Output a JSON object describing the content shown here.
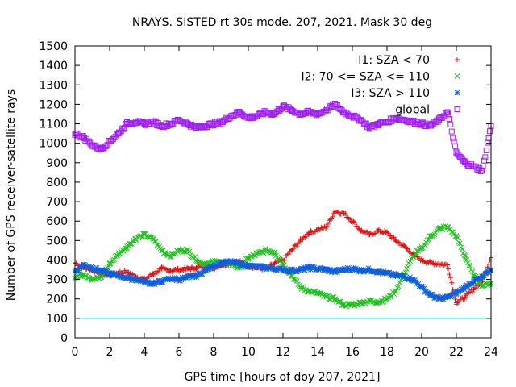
{
  "chart_data": {
    "type": "scatter",
    "title": "NRAYS. SISTED rt 30s mode. 207, 2021. Mask 30 deg",
    "xlabel": "GPS time [hours of doy 207, 2021]",
    "ylabel": "Number of GPS receiver-satellite rays",
    "xlim": [
      0,
      24
    ],
    "ylim": [
      0,
      1500
    ],
    "xticks": [
      0,
      2,
      4,
      6,
      8,
      10,
      12,
      14,
      16,
      18,
      20,
      22,
      24
    ],
    "yticks": [
      0,
      100,
      200,
      300,
      400,
      500,
      600,
      700,
      800,
      900,
      1000,
      1100,
      1200,
      1300,
      1400,
      1500
    ],
    "grid": false,
    "legend_position": "top-right",
    "reference_line": {
      "y": 100,
      "color": "#00c0c0"
    },
    "series": [
      {
        "name": "I1: SZA < 70",
        "marker": "+",
        "color": "#e01010",
        "x": [
          0,
          0.5,
          1,
          1.5,
          2,
          2.5,
          3,
          3.5,
          4,
          4.5,
          5,
          5.5,
          6,
          6.5,
          7,
          7.5,
          8,
          8.5,
          9,
          9.5,
          10,
          10.5,
          11,
          11.5,
          12,
          12.5,
          13,
          13.5,
          14,
          14.5,
          15,
          15.5,
          16,
          16.5,
          17,
          17.5,
          18,
          18.5,
          19,
          19.5,
          20,
          20.5,
          21,
          21.5,
          22,
          22.5,
          23,
          23.5,
          24
        ],
        "y": [
          385,
          360,
          350,
          330,
          320,
          335,
          340,
          315,
          300,
          330,
          355,
          345,
          350,
          355,
          360,
          370,
          360,
          375,
          385,
          390,
          370,
          360,
          355,
          380,
          400,
          450,
          500,
          540,
          555,
          570,
          650,
          640,
          600,
          550,
          530,
          550,
          540,
          500,
          470,
          430,
          400,
          385,
          380,
          375,
          180,
          210,
          250,
          290,
          420
        ]
      },
      {
        "name": "I2: 70 <= SZA <= 110",
        "marker": "x",
        "color": "#20c020",
        "x": [
          0,
          0.5,
          1,
          1.5,
          2,
          2.5,
          3,
          3.5,
          4,
          4.5,
          5,
          5.5,
          6,
          6.5,
          7,
          7.5,
          8,
          8.5,
          9,
          9.5,
          10,
          10.5,
          11,
          11.5,
          12,
          12.5,
          13,
          13.5,
          14,
          14.5,
          15,
          15.5,
          16,
          16.5,
          17,
          17.5,
          18,
          18.5,
          19,
          19.5,
          20,
          20.5,
          21,
          21.5,
          22,
          22.5,
          23,
          23.5,
          24
        ],
        "y": [
          310,
          330,
          300,
          310,
          380,
          430,
          470,
          510,
          530,
          510,
          450,
          420,
          450,
          450,
          400,
          380,
          390,
          390,
          380,
          360,
          410,
          430,
          450,
          440,
          380,
          320,
          260,
          240,
          230,
          210,
          200,
          170,
          170,
          180,
          190,
          185,
          200,
          240,
          330,
          420,
          460,
          520,
          560,
          570,
          520,
          420,
          320,
          270,
          280
        ]
      },
      {
        "name": "I3: SZA > 110",
        "marker": "*",
        "color": "#1060d8",
        "x": [
          0,
          0.5,
          1,
          1.5,
          2,
          2.5,
          3,
          3.5,
          4,
          4.5,
          5,
          5.5,
          6,
          6.5,
          7,
          7.5,
          8,
          8.5,
          9,
          9.5,
          10,
          10.5,
          11,
          11.5,
          12,
          12.5,
          13,
          13.5,
          14,
          14.5,
          15,
          15.5,
          16,
          16.5,
          17,
          17.5,
          18,
          18.5,
          19,
          19.5,
          20,
          20.5,
          21,
          21.5,
          22,
          22.5,
          23,
          23.5,
          24
        ],
        "y": [
          340,
          375,
          360,
          345,
          330,
          320,
          310,
          300,
          290,
          280,
          290,
          305,
          300,
          310,
          320,
          345,
          370,
          385,
          390,
          380,
          370,
          365,
          360,
          355,
          350,
          345,
          350,
          360,
          355,
          350,
          340,
          350,
          355,
          345,
          350,
          340,
          330,
          320,
          315,
          300,
          260,
          220,
          200,
          210,
          230,
          260,
          290,
          310,
          350
        ]
      },
      {
        "name": "global",
        "marker": "square",
        "color": "#a020f0",
        "x": [
          0,
          0.5,
          1,
          1.5,
          2,
          2.5,
          3,
          3.5,
          4,
          4.5,
          5,
          5.5,
          6,
          6.5,
          7,
          7.5,
          8,
          8.5,
          9,
          9.5,
          10,
          10.5,
          11,
          11.5,
          12,
          12.5,
          13,
          13.5,
          14,
          14.5,
          15,
          15.5,
          16,
          16.5,
          17,
          17.5,
          18,
          18.5,
          19,
          19.5,
          20,
          20.5,
          21,
          21.5,
          22,
          22.5,
          23,
          23.5,
          24
        ],
        "y": [
          1050,
          1030,
          990,
          970,
          1010,
          1050,
          1100,
          1110,
          1100,
          1110,
          1090,
          1100,
          1120,
          1100,
          1080,
          1090,
          1100,
          1110,
          1140,
          1160,
          1130,
          1140,
          1160,
          1150,
          1190,
          1170,
          1150,
          1160,
          1150,
          1170,
          1200,
          1160,
          1140,
          1120,
          1080,
          1100,
          1110,
          1130,
          1120,
          1110,
          1100,
          1090,
          1120,
          1160,
          950,
          900,
          880,
          860,
          1090
        ]
      }
    ]
  }
}
